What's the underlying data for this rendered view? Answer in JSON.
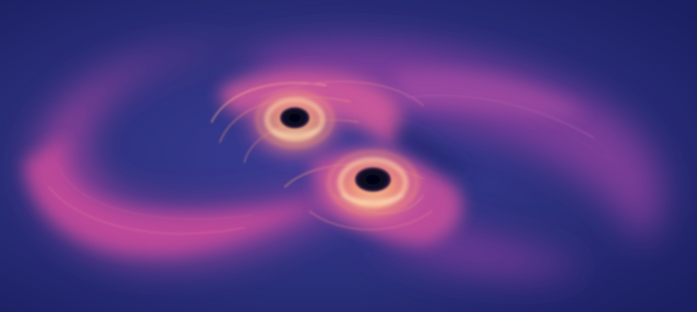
{
  "image": {
    "palette": {
      "background_deep": "#1b1f63",
      "background": "#2a2f7a",
      "background_light": "#3b3f93",
      "gas_violet": "#8a3f9e",
      "gas_magenta": "#c24a9a",
      "gas_pink": "#e66aa0",
      "gas_orange": "#f59a6a",
      "gas_hot": "#ffd9a0",
      "hole_core": "#06061a"
    },
    "objects": [
      {
        "name": "black-hole-upper-left"
      },
      {
        "name": "black-hole-lower-right"
      }
    ]
  }
}
